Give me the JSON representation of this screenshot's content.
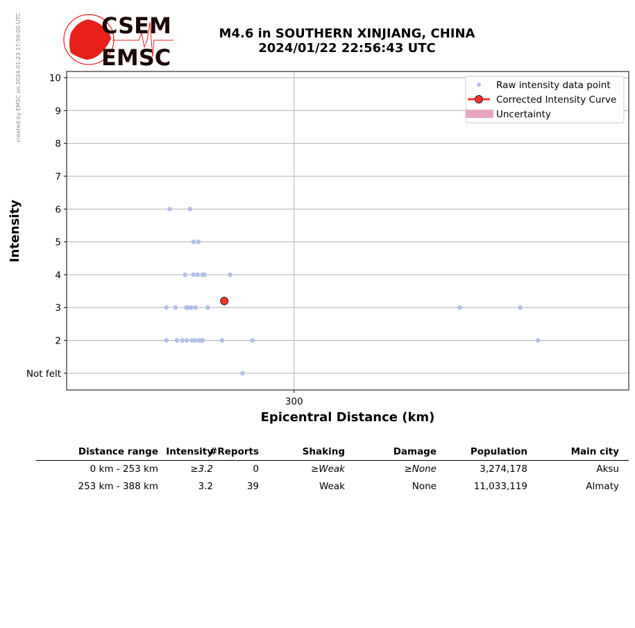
{
  "credit": "created by EMSC on 2024-01-23 17:50:00 UTC",
  "logo": {
    "top_text": "CSEM",
    "bottom_text": "EMSC",
    "color": "#e8201c"
  },
  "title": {
    "line1": "M4.6 in SOUTHERN XINJIANG, CHINA",
    "line2": "2024/01/22 22:56:43 UTC"
  },
  "chart_data": {
    "type": "scatter",
    "xlabel": "Epicentral Distance (km)",
    "ylabel": "Intensity",
    "xscale": "log",
    "xlim": [
      236,
      427
    ],
    "ylim": [
      0.49,
      10.19
    ],
    "x_ticks": [
      {
        "value": 300,
        "label": "300"
      }
    ],
    "y_ticks": [
      {
        "value": 1,
        "label": "Not felt"
      },
      {
        "value": 2,
        "label": "2"
      },
      {
        "value": 3,
        "label": "3"
      },
      {
        "value": 4,
        "label": "4"
      },
      {
        "value": 5,
        "label": "5"
      },
      {
        "value": 6,
        "label": "6"
      },
      {
        "value": 7,
        "label": "7"
      },
      {
        "value": 8,
        "label": "8"
      },
      {
        "value": 9,
        "label": "9"
      },
      {
        "value": 10,
        "label": "10"
      }
    ],
    "grid": true,
    "legend_position": "top-right",
    "legend": [
      "Raw intensity data point",
      "Corrected Intensity Curve",
      "Uncertainty"
    ],
    "colors": {
      "raw": "#b3bfe9",
      "corrected": "#ff3333",
      "uncertainty": "#e8a6c3"
    },
    "raw_points": [
      [
        263.1,
        6
      ],
      [
        268.8,
        6
      ],
      [
        269.8,
        5
      ],
      [
        271.2,
        5
      ],
      [
        267.4,
        4
      ],
      [
        269.8,
        4
      ],
      [
        271.0,
        4
      ],
      [
        272.4,
        4
      ],
      [
        272.9,
        4
      ],
      [
        280.4,
        4
      ],
      [
        262.2,
        3
      ],
      [
        264.7,
        3
      ],
      [
        267.8,
        3
      ],
      [
        268.4,
        3
      ],
      [
        269.2,
        3
      ],
      [
        270.4,
        3
      ],
      [
        273.9,
        3
      ],
      [
        357.3,
        3
      ],
      [
        380.8,
        3
      ],
      [
        262.2,
        2
      ],
      [
        265.1,
        2
      ],
      [
        266.6,
        2
      ],
      [
        267.9,
        2
      ],
      [
        269.4,
        2
      ],
      [
        270.2,
        2
      ],
      [
        271.4,
        2
      ],
      [
        272.0,
        2
      ],
      [
        272.4,
        2
      ],
      [
        278.0,
        2
      ],
      [
        287.1,
        2
      ],
      [
        388.0,
        2
      ],
      [
        284.1,
        1
      ]
    ],
    "corrected_points": [
      [
        278.7,
        3.2
      ]
    ]
  },
  "table": {
    "headers": [
      "Distance range",
      "Intensity",
      "#Reports",
      "Shaking",
      "Damage",
      "Population",
      "Main city"
    ],
    "rows": [
      [
        {
          "t": "0 km -  253 km"
        },
        {
          "p": "≥",
          "i": "3.2"
        },
        {
          "t": "0"
        },
        {
          "p": "≥",
          "i": "Weak"
        },
        {
          "p": "≥",
          "i": "None"
        },
        {
          "t": "3,274,178"
        },
        {
          "t": "Aksu"
        }
      ],
      [
        {
          "t": "253 km -  388 km"
        },
        {
          "t": "3.2"
        },
        {
          "t": "39"
        },
        {
          "t": "Weak"
        },
        {
          "t": "None"
        },
        {
          "t": "11,033,119"
        },
        {
          "t": "Almaty"
        }
      ]
    ]
  }
}
